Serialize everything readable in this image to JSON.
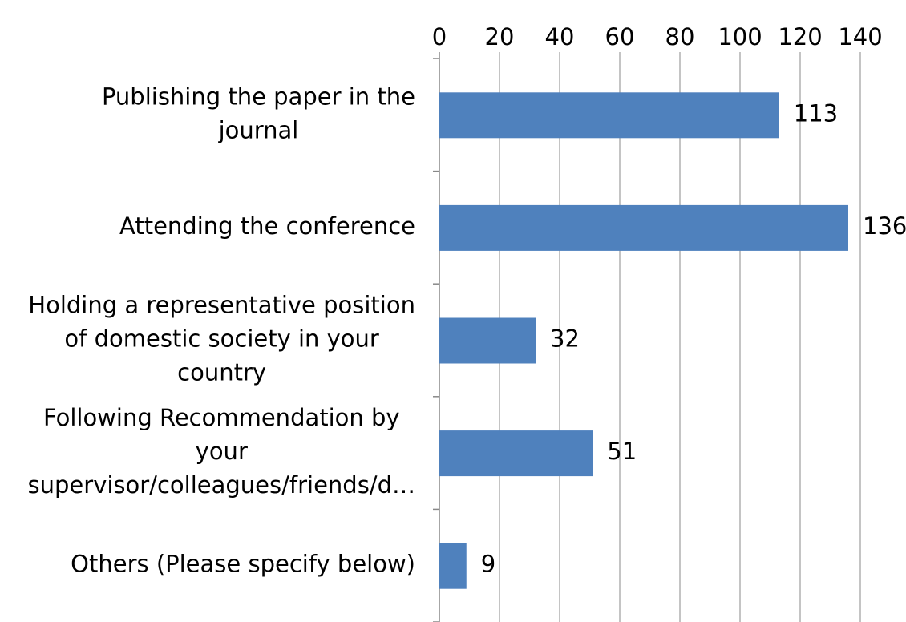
{
  "chart_data": {
    "type": "bar",
    "orientation": "horizontal",
    "categories": [
      [
        "Publishing the paper in the",
        "journal"
      ],
      [
        "Attending the conference"
      ],
      [
        "Holding a representative position",
        "of domestic society in your",
        "country"
      ],
      [
        "Following Recommendation by",
        "your",
        "supervisor/colleagues/friends/d…"
      ],
      [
        "Others (Please specify below)"
      ]
    ],
    "values": [
      113,
      136,
      32,
      51,
      9
    ],
    "color": "#4f81bd",
    "xlim": [
      0,
      140
    ],
    "xticks": [
      0,
      20,
      40,
      60,
      80,
      100,
      120,
      140
    ],
    "grid": true
  }
}
